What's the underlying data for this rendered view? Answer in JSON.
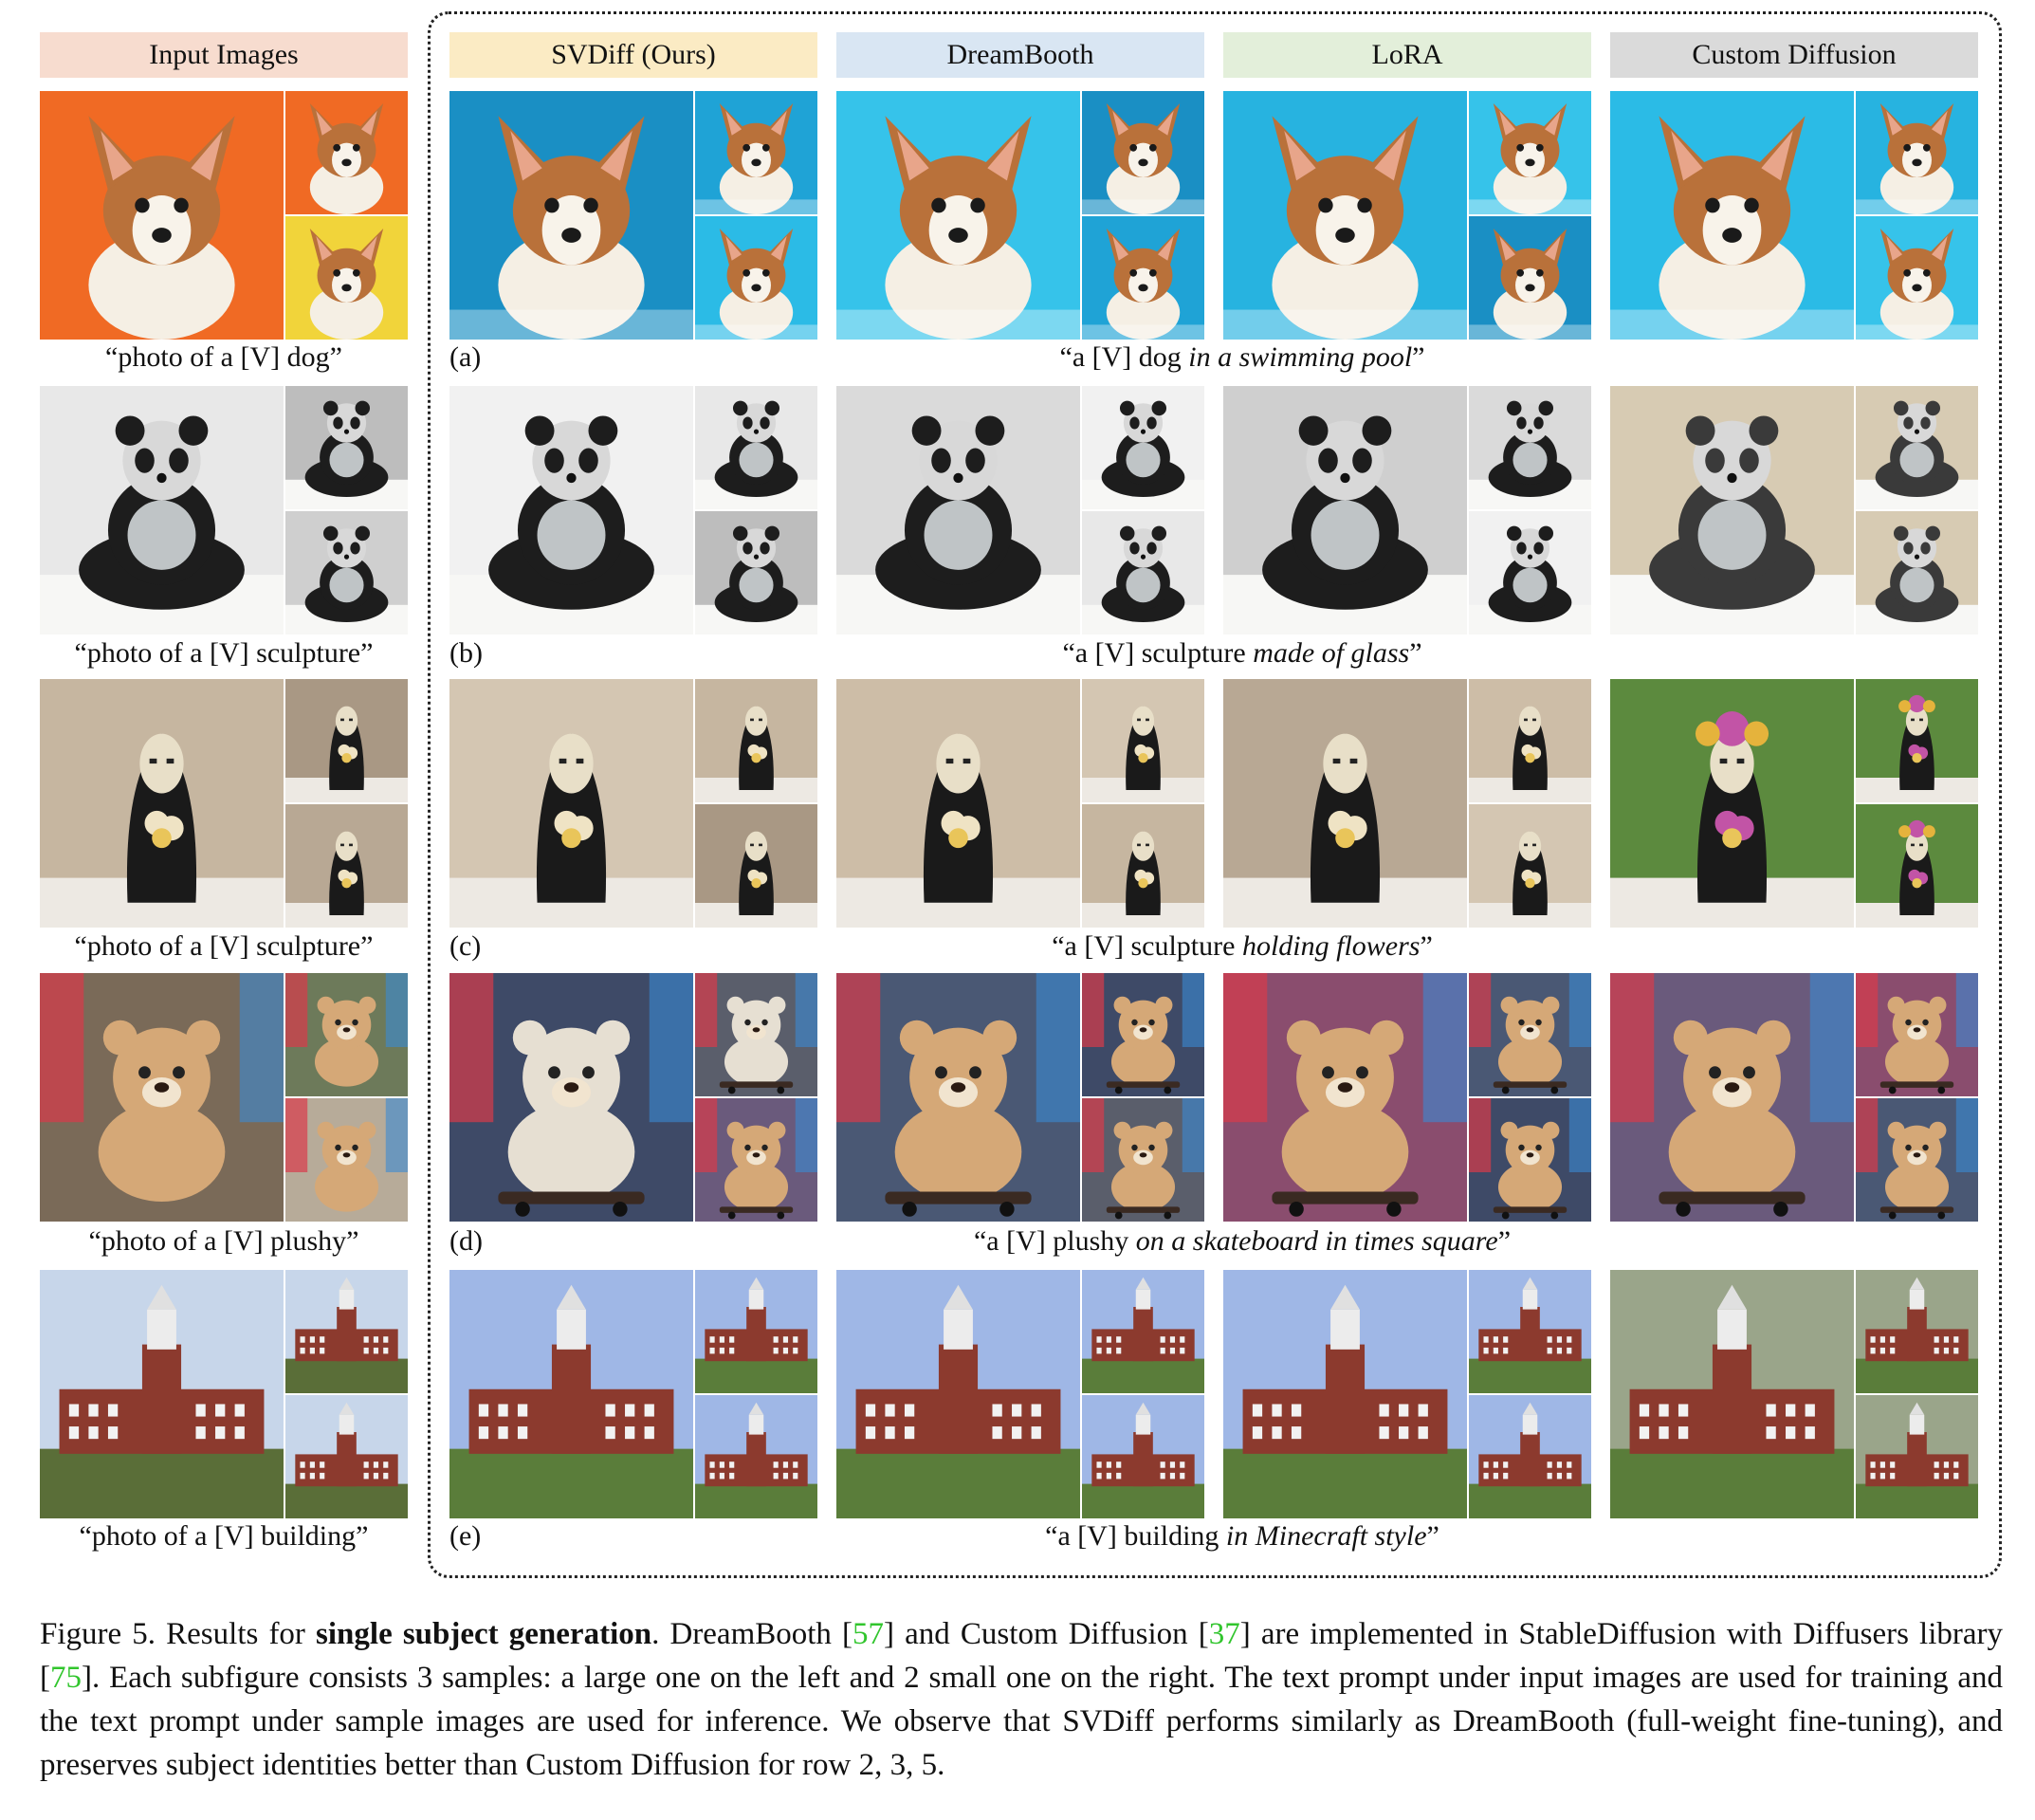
{
  "headers": {
    "input": "Input Images",
    "svdiff": "SVDiff (Ours)",
    "dreambooth": "DreamBooth",
    "lora": "LoRA",
    "custom": "Custom Diffusion"
  },
  "rows": [
    {
      "label": "(a)",
      "input_caption": "“photo of a [V] dog”",
      "prompt_pre": "“a [V] dog ",
      "prompt_italic": "in a swimming pool",
      "prompt_post": "”",
      "subject": "dog"
    },
    {
      "label": "(b)",
      "input_caption": "“photo of a [V] sculpture”",
      "prompt_pre": "“a [V] sculpture ",
      "prompt_italic": "made of glass",
      "prompt_post": "”",
      "subject": "panda"
    },
    {
      "label": "(c)",
      "input_caption": "“photo of a [V] sculpture”",
      "prompt_pre": "“a [V] sculpture ",
      "prompt_italic": "holding flowers",
      "prompt_post": "”",
      "subject": "figure"
    },
    {
      "label": "(d)",
      "input_caption": "“photo of a [V] plushy”",
      "prompt_pre": "“a [V] plushy ",
      "prompt_italic": "on a skateboard in times square",
      "prompt_post": "”",
      "subject": "bear"
    },
    {
      "label": "(e)",
      "input_caption": "“photo of a [V] building”",
      "prompt_pre": "“a [V] building ",
      "prompt_italic": "in Minecraft style",
      "prompt_post": "”",
      "subject": "building"
    }
  ],
  "figure_caption": {
    "prefix": "Figure 5.  Results for ",
    "bold": "single subject generation",
    "part1": ".  DreamBooth [",
    "cite1": "57",
    "part2": "] and Custom Diffusion [",
    "cite2": "37",
    "part3": "] are implemented in StableDiffusion with Diffusers library [",
    "cite3": "75",
    "part4": "]. Each subfigure consists 3 samples: a large one on the left and 2 small one on the right. The text prompt under input images are used for training and the text prompt under sample images are used for inference. We observe that SVDiff performs similarly as DreamBooth (full-weight fine-tuning), and preserves subject identities better than Custom Diffusion for row 2, 3, 5."
  },
  "colors": {
    "header_input": "#f7dccf",
    "header_svdiff": "#fbebc4",
    "header_dreambooth": "#d9e6f3",
    "header_lora": "#e3efda",
    "header_custom": "#dadada",
    "citation": "#31c52d"
  }
}
